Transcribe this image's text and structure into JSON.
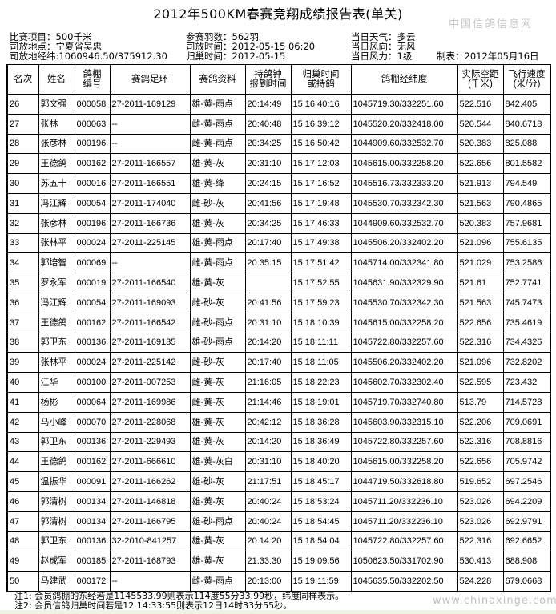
{
  "title": "2012年500KM春赛竞翔成绩报告表(单关)",
  "meta": {
    "event": "比赛项目：500千米",
    "release_place": "司放地点：宁夏省吴忠",
    "release_coords": "司放地经纬:1060946.50/375912.30",
    "entries": "参赛羽数：562羽",
    "release_time": "司放时间：2012-05-15 06:20",
    "return_time": "归巢时间：2012-05-15",
    "weather": "当日天气：多云",
    "wind_dir": "当日风向：无风",
    "wind_force": "当日风力：1级",
    "made": "制表：2012年05月16日"
  },
  "columns": [
    "名次",
    "姓名",
    "鸽棚\n编号",
    "赛鸽足环",
    "赛鸽资料",
    "持鸽钟\n报到时间",
    "归巢时间\n或持鸽",
    "鸽棚经纬度",
    "实际空距\n(千米)",
    "飞行速度\n(米/分)"
  ],
  "rows": [
    [
      "26",
      "郭文强",
      "000058",
      "27-2011-169129",
      "雄-黄-雨点",
      "20:14:49",
      "15 16:40:16",
      "1045719.30/332251.60",
      "522.516",
      "842.405"
    ],
    [
      "27",
      "张林",
      "000063",
      "--",
      "雌-黄-雨点",
      "20:40:48",
      "15 16:39:12",
      "1045520.20/332418.00",
      "520.544",
      "840.6718"
    ],
    [
      "28",
      "张彦林",
      "000196",
      "--",
      "雌-黄-雨点",
      "20:34:25",
      "15 16:50:42",
      "1044909.60/332532.70",
      "520.383",
      "825.088"
    ],
    [
      "29",
      "王德鸽",
      "000162",
      "27-2011-166557",
      "雄-黄-灰",
      "20:31:10",
      "15 17:12:03",
      "1045615.00/332258.20",
      "522.656",
      "801.5582"
    ],
    [
      "30",
      "苏五十",
      "000016",
      "27-2011-166551",
      "雄-黄-绛",
      "20:24:15",
      "15 17:16:52",
      "1045516.73/332333.20",
      "521.913",
      "794.549"
    ],
    [
      "31",
      "冯江辉",
      "000054",
      "27-2011-174040",
      "雌-砂-灰",
      "20:41:56",
      "15 17:19:48",
      "1045530.70/332342.30",
      "521.563",
      "790.4865"
    ],
    [
      "32",
      "张彦林",
      "000196",
      "27-2011-166736",
      "雄-黄-灰",
      "20:34:25",
      "15 17:46:33",
      "1044909.60/332532.70",
      "520.383",
      "757.9681"
    ],
    [
      "33",
      "张林平",
      "000024",
      "27-2011-225145",
      "雄-黄-雨点",
      "20:17:40",
      "15 17:49:38",
      "1045506.20/332402.20",
      "521.096",
      "755.6135"
    ],
    [
      "34",
      "郭培智",
      "000069",
      "--",
      "雌-黄-雨点",
      "20:35:15",
      "15 17:51:42",
      "1045714.00/332341.80",
      "521.029",
      "753.2586"
    ],
    [
      "35",
      "罗永军",
      "000019",
      "27-2011-166540",
      "雄-黄-灰",
      "",
      "15 17:52:55",
      "1045631.90/332329.90",
      "521.61",
      "752.7741"
    ],
    [
      "36",
      "冯江辉",
      "000054",
      "27-2011-169093",
      "雌-砂-灰",
      "20:41:56",
      "15 17:59:23",
      "1045530.70/332342.30",
      "521.563",
      "745.7473"
    ],
    [
      "37",
      "王德鸽",
      "000162",
      "27-2011-166542",
      "雌-砂-雨点",
      "20:31:10",
      "15 18:10:39",
      "1045615.00/332258.20",
      "522.656",
      "735.4619"
    ],
    [
      "38",
      "郭卫东",
      "000136",
      "27-2011-169135",
      "雄-砂-雨点",
      "20:14:20",
      "15 18:11:11",
      "1045722.80/332257.60",
      "522.316",
      "734.4326"
    ],
    [
      "39",
      "张林平",
      "000024",
      "27-2011-225142",
      "雌-砂-灰",
      "20:17:40",
      "15 18:11:05",
      "1045506.20/332402.20",
      "521.096",
      "732.8202"
    ],
    [
      "40",
      "江华",
      "000100",
      "27-2011-007253",
      "雌-黄-灰",
      "21:16:05",
      "15 18:22:23",
      "1045602.70/332302.40",
      "522.595",
      "723.432"
    ],
    [
      "41",
      "杨彬",
      "000064",
      "27-2011-169986",
      "雌-黄-灰",
      "21:14:46",
      "15 18:19:01",
      "1045719.70/332740.80",
      "513.79",
      "714.5728"
    ],
    [
      "42",
      "马小峰",
      "000070",
      "27-2011-228068",
      "雄-黄-灰",
      "20:42:12",
      "15 18:36:28",
      "1045603.90/332315.10",
      "522.206",
      "709.0691"
    ],
    [
      "43",
      "郭卫东",
      "000136",
      "27-2011-229493",
      "雄-黄-灰",
      "20:14:20",
      "15 18:36:49",
      "1045722.80/332257.60",
      "522.316",
      "708.8816"
    ],
    [
      "44",
      "王德鸽",
      "000162",
      "27-2011-666610",
      "雄-黄-灰白",
      "20:31:10",
      "15 18:40:20",
      "1045615.00/332258.20",
      "522.656",
      "705.9742"
    ],
    [
      "45",
      "温振华",
      "000091",
      "27-2011-166262",
      "雄-砂-灰",
      "21:17:51",
      "15 18:45:17",
      "1044719.50/332618.80",
      "519.652",
      "697.2546"
    ],
    [
      "46",
      "郭清树",
      "000134",
      "27-2011-146818",
      "雄-黄-灰",
      "20:40:24",
      "15 18:53:24",
      "1045711.20/332236.10",
      "523.026",
      "694.2209"
    ],
    [
      "47",
      "郭清树",
      "000134",
      "27-2011-166795",
      "雄-砂-雨点",
      "20:40:24",
      "15 18:54:45",
      "1045711.20/332236.10",
      "523.026",
      "692.9791"
    ],
    [
      "48",
      "郭卫东",
      "000136",
      "32-2010-841257",
      "雄-黄-灰",
      "20:14:20",
      "15 18:54:04",
      "1045722.80/332257.60",
      "522.316",
      "692.6652"
    ],
    [
      "49",
      "赵成军",
      "000185",
      "27-2011-168793",
      "雄-黄-灰",
      "21:33:30",
      "15 19:09:56",
      "1050623.50/331702.90",
      "530.413",
      "688.908"
    ],
    [
      "50",
      "马建武",
      "000172",
      "--",
      "雌-黄-雨点",
      "20:13:00",
      "15 19:11:59",
      "1045635.50/332202.50",
      "524.228",
      "679.0668"
    ]
  ],
  "notes": [
    "注1: 会员鸽棚的东经若是1145533.99则表示114度55分33.99秒，纬度同样表示。",
    "注2: 会员信鸽归巢时间若是12 14:33:55则表示12日14时33分55秒。"
  ],
  "watermark": {
    "cn": "中国信鸽信息网",
    "url": "www.chinaxinge.com"
  }
}
